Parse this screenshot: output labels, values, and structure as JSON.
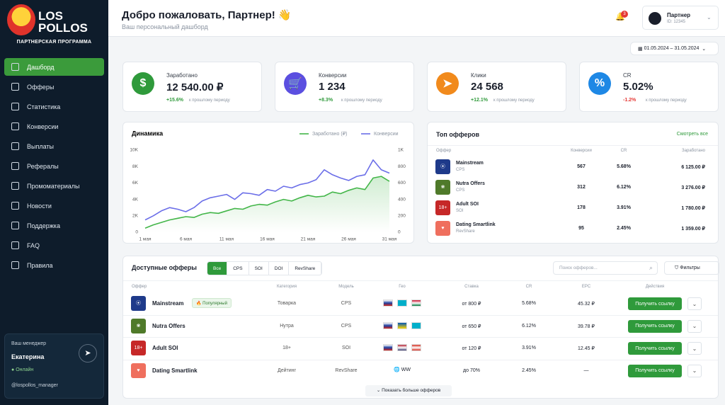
{
  "sidebar": {
    "logo": {
      "line1": "LOS",
      "line2": "POLLOS",
      "subtitle": "ПАРТНЕРСКАЯ ПРОГРАММА"
    },
    "nav": [
      "Дашборд",
      "Офферы",
      "Статистика",
      "Конверсии",
      "Выплаты",
      "Рефералы",
      "Промоматериалы",
      "Новости",
      "Поддержка",
      "FAQ",
      "Правила"
    ],
    "manager": {
      "label": "Ваш менеджер",
      "name": "Екатерина",
      "status": "Онлайн",
      "handle": "@lospollos_manager"
    }
  },
  "header": {
    "title": "Добро пожаловать, Партнер! 👋",
    "subtitle": "Ваш персональный дашборд",
    "notifications": "3",
    "user": {
      "name": "Партнер",
      "id": "ID: 12345"
    },
    "date_range": "01.05.2024 – 31.05.2024"
  },
  "kpi_note": "к прошлому периоду",
  "kpis": [
    {
      "label": "Заработано",
      "value": "12 540.00 ₽",
      "change": "+15.6%"
    },
    {
      "label": "Конверсии",
      "value": "1 234",
      "change": "+8.3%"
    },
    {
      "label": "Клики",
      "value": "24 568",
      "change": "+12.1%"
    },
    {
      "label": "CR",
      "value": "5.02%",
      "change": "-1.2%"
    }
  ],
  "chart_data": {
    "type": "line",
    "title": "Динамика",
    "categories": [
      "1 мая",
      null,
      null,
      null,
      null,
      "6 мая",
      null,
      null,
      null,
      null,
      "11 мая",
      null,
      null,
      null,
      null,
      "16 мая",
      null,
      null,
      null,
      null,
      "21 мая",
      null,
      null,
      null,
      null,
      "26 мая",
      null,
      null,
      null,
      null,
      "31 мая"
    ],
    "series": [
      {
        "name": "Заработано (₽)",
        "color": "#43b649",
        "values": [
          500,
          900,
          1200,
          1500,
          1700,
          1900,
          1800,
          2200,
          2400,
          2300,
          2600,
          2900,
          2800,
          3200,
          3400,
          3300,
          3700,
          4000,
          3800,
          4200,
          4500,
          4300,
          4400,
          4900,
          4700,
          5100,
          5400,
          5200,
          6600,
          6800,
          6200
        ]
      },
      {
        "name": "Конверсии",
        "color": "#6b6ee8",
        "axis": "y2",
        "values": [
          150,
          200,
          260,
          300,
          280,
          250,
          300,
          380,
          420,
          440,
          460,
          400,
          480,
          470,
          450,
          520,
          500,
          560,
          540,
          580,
          600,
          640,
          760,
          700,
          660,
          630,
          680,
          700,
          880,
          760,
          720
        ]
      }
    ],
    "ylim": [
      0,
      10000
    ],
    "yticks": [
      0,
      {
        "value": 2000,
        "label": "2K"
      },
      {
        "value": 4000,
        "label": "4K"
      },
      {
        "value": 6000,
        "label": "6K"
      },
      {
        "value": 8000,
        "label": "8K"
      },
      {
        "value": 10000,
        "label": "10K"
      }
    ],
    "y2lim": [
      0,
      1000
    ],
    "y2ticks": [
      0,
      200,
      400,
      600,
      800,
      {
        "value": 1000,
        "label": "1K"
      }
    ],
    "legend": "top-right",
    "grid": false
  },
  "top_offers": {
    "title": "Топ офферов",
    "link": "Смотреть все",
    "columns": [
      "Оффер",
      "Конверсии",
      "CR",
      "Заработано"
    ],
    "rows": [
      {
        "name": "Mainstream",
        "model": "CPS",
        "conversions": "567",
        "cr": "5.68%",
        "earned": "6 125.00 ₽"
      },
      {
        "name": "Nutra Offers",
        "model": "CPS",
        "conversions": "312",
        "cr": "6.12%",
        "earned": "3 276.00 ₽"
      },
      {
        "name": "Adult SOI",
        "model": "SOI",
        "conversions": "178",
        "cr": "3.91%",
        "earned": "1 780.00 ₽"
      },
      {
        "name": "Dating Smartlink",
        "model": "RevShare",
        "conversions": "95",
        "cr": "2.45%",
        "earned": "1 359.00 ₽"
      }
    ]
  },
  "offers": {
    "title": "Доступные офферы",
    "filters": [
      "Все",
      "CPS",
      "SOI",
      "DOI",
      "RevShare"
    ],
    "search_placeholder": "Поиск офферов...",
    "filter_button": "Фильтры",
    "columns": [
      "Оффер",
      "Категория",
      "Модель",
      "Гео",
      "Ставка",
      "CR",
      "EPC",
      "Действия"
    ],
    "action": "Получить ссылку",
    "more": "Показать больше офферов",
    "rows": [
      {
        "name": "Mainstream",
        "badge": "Популярный",
        "category": "Товарка",
        "model": "CPS",
        "rate": "от 800 ₽",
        "cr": "5.68%",
        "epc": "45.32 ₽"
      },
      {
        "name": "Nutra Offers",
        "category": "Нутра",
        "model": "CPS",
        "rate": "от 650 ₽",
        "cr": "6.12%",
        "epc": "39.78 ₽"
      },
      {
        "name": "Adult SOI",
        "category": "18+",
        "model": "SOI",
        "rate": "от 120 ₽",
        "cr": "3.91%",
        "epc": "12.45 ₽"
      },
      {
        "name": "Dating Smartlink",
        "category": "Дейтинг",
        "model": "RevShare",
        "geo": "WW",
        "rate": "до 70%",
        "cr": "2.45%",
        "epc": "—"
      }
    ]
  }
}
